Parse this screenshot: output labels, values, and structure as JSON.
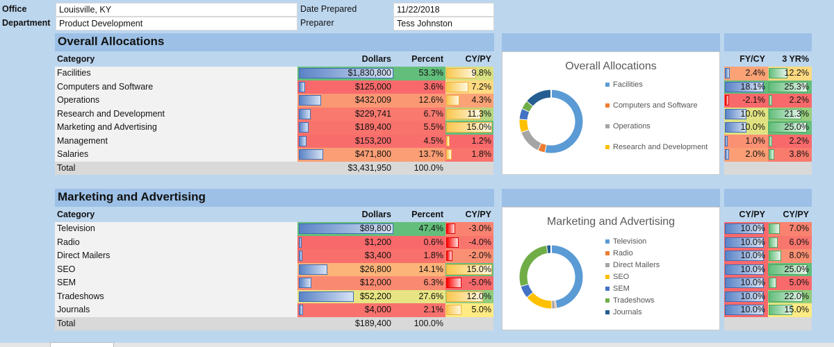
{
  "header": {
    "office_label": "Office",
    "office_value": "Louisville, KY",
    "department_label": "Department",
    "department_value": "Product Development",
    "date_label": "Date Prepared",
    "date_value": "11/22/2018",
    "preparer_label": "Preparer",
    "preparer_value": "Tess Johnston"
  },
  "overall": {
    "title": "Overall Allocations",
    "columns": {
      "category": "Category",
      "dollars": "Dollars",
      "percent": "Percent",
      "cypy": "CY/PY"
    },
    "rows": [
      {
        "category": "Facilities",
        "dollars": "$1,830,800",
        "percent": "53.3%",
        "cypy": "9.8%"
      },
      {
        "category": "Computers and Software",
        "dollars": "$125,000",
        "percent": "3.6%",
        "cypy": "7.2%"
      },
      {
        "category": "Operations",
        "dollars": "$432,009",
        "percent": "12.6%",
        "cypy": "4.3%"
      },
      {
        "category": "Research and Development",
        "dollars": "$229,741",
        "percent": "6.7%",
        "cypy": "11.3%"
      },
      {
        "category": "Marketing and Advertising",
        "dollars": "$189,400",
        "percent": "5.5%",
        "cypy": "15.0%"
      },
      {
        "category": "Management",
        "dollars": "$153,200",
        "percent": "4.5%",
        "cypy": "1.2%"
      },
      {
        "category": "Salaries",
        "dollars": "$471,800",
        "percent": "13.7%",
        "cypy": "1.8%"
      }
    ],
    "total_label": "Total",
    "total_dollars": "$3,431,950",
    "total_percent": "100.0%",
    "right_headers": {
      "a": "FY/CY",
      "b": "3 YR%"
    },
    "right_rows": [
      {
        "a": "2.4%",
        "b": "12.2%"
      },
      {
        "a": "18.1%",
        "b": "25.3%"
      },
      {
        "a": "-2.1%",
        "b": "2.2%"
      },
      {
        "a": "10.0%",
        "b": "21.3%"
      },
      {
        "a": "10.0%",
        "b": "25.0%"
      },
      {
        "a": "1.0%",
        "b": "2.2%"
      },
      {
        "a": "2.0%",
        "b": "3.8%"
      }
    ],
    "chart_title": "Overall Allocations",
    "legend": [
      {
        "label": "Facilities",
        "color": "#5b9bd5"
      },
      {
        "label": "Computers and Software",
        "color": "#ed7d31"
      },
      {
        "label": "Operations",
        "color": "#a5a5a5"
      },
      {
        "label": "Research and Development",
        "color": "#ffc000"
      }
    ]
  },
  "marketing": {
    "title": "Marketing and Advertising",
    "columns": {
      "category": "Category",
      "dollars": "Dollars",
      "percent": "Percent",
      "cypy": "CY/PY"
    },
    "rows": [
      {
        "category": "Television",
        "dollars": "$89,800",
        "percent": "47.4%",
        "cypy": "-3.0%"
      },
      {
        "category": "Radio",
        "dollars": "$1,200",
        "percent": "0.6%",
        "cypy": "-4.0%"
      },
      {
        "category": "Direct Mailers",
        "dollars": "$3,400",
        "percent": "1.8%",
        "cypy": "-2.0%"
      },
      {
        "category": "SEO",
        "dollars": "$26,800",
        "percent": "14.1%",
        "cypy": "15.0%"
      },
      {
        "category": "SEM",
        "dollars": "$12,000",
        "percent": "6.3%",
        "cypy": "-5.0%"
      },
      {
        "category": "Tradeshows",
        "dollars": "$52,200",
        "percent": "27.6%",
        "cypy": "12.0%"
      },
      {
        "category": "Journals",
        "dollars": "$4,000",
        "percent": "2.1%",
        "cypy": "5.0%"
      }
    ],
    "total_label": "Total",
    "total_dollars": "$189,400",
    "total_percent": "100.0%",
    "right_headers": {
      "a": "CY/PY",
      "b": "CY/PY"
    },
    "right_rows": [
      {
        "a": "10.0%",
        "b": "7.0%"
      },
      {
        "a": "10.0%",
        "b": "6.0%"
      },
      {
        "a": "10.0%",
        "b": "8.0%"
      },
      {
        "a": "10.0%",
        "b": "25.0%"
      },
      {
        "a": "10.0%",
        "b": "5.0%"
      },
      {
        "a": "10.0%",
        "b": "22.0%"
      },
      {
        "a": "10.0%",
        "b": "15.0%"
      }
    ],
    "chart_title": "Marketing and Advertising",
    "legend": [
      {
        "label": "Television",
        "color": "#5b9bd5"
      },
      {
        "label": "Radio",
        "color": "#ed7d31"
      },
      {
        "label": "Direct Mailers",
        "color": "#a5a5a5"
      },
      {
        "label": "SEO",
        "color": "#ffc000"
      },
      {
        "label": "SEM",
        "color": "#4472c4"
      },
      {
        "label": "Tradeshows",
        "color": "#70ad47"
      },
      {
        "label": "Journals",
        "color": "#255e91"
      }
    ]
  },
  "colors": {
    "green": "#63be7b",
    "yellow": "#ffeb84",
    "red": "#f8696b",
    "band": "#9cc0e6",
    "background": "#bcd6ee"
  }
}
